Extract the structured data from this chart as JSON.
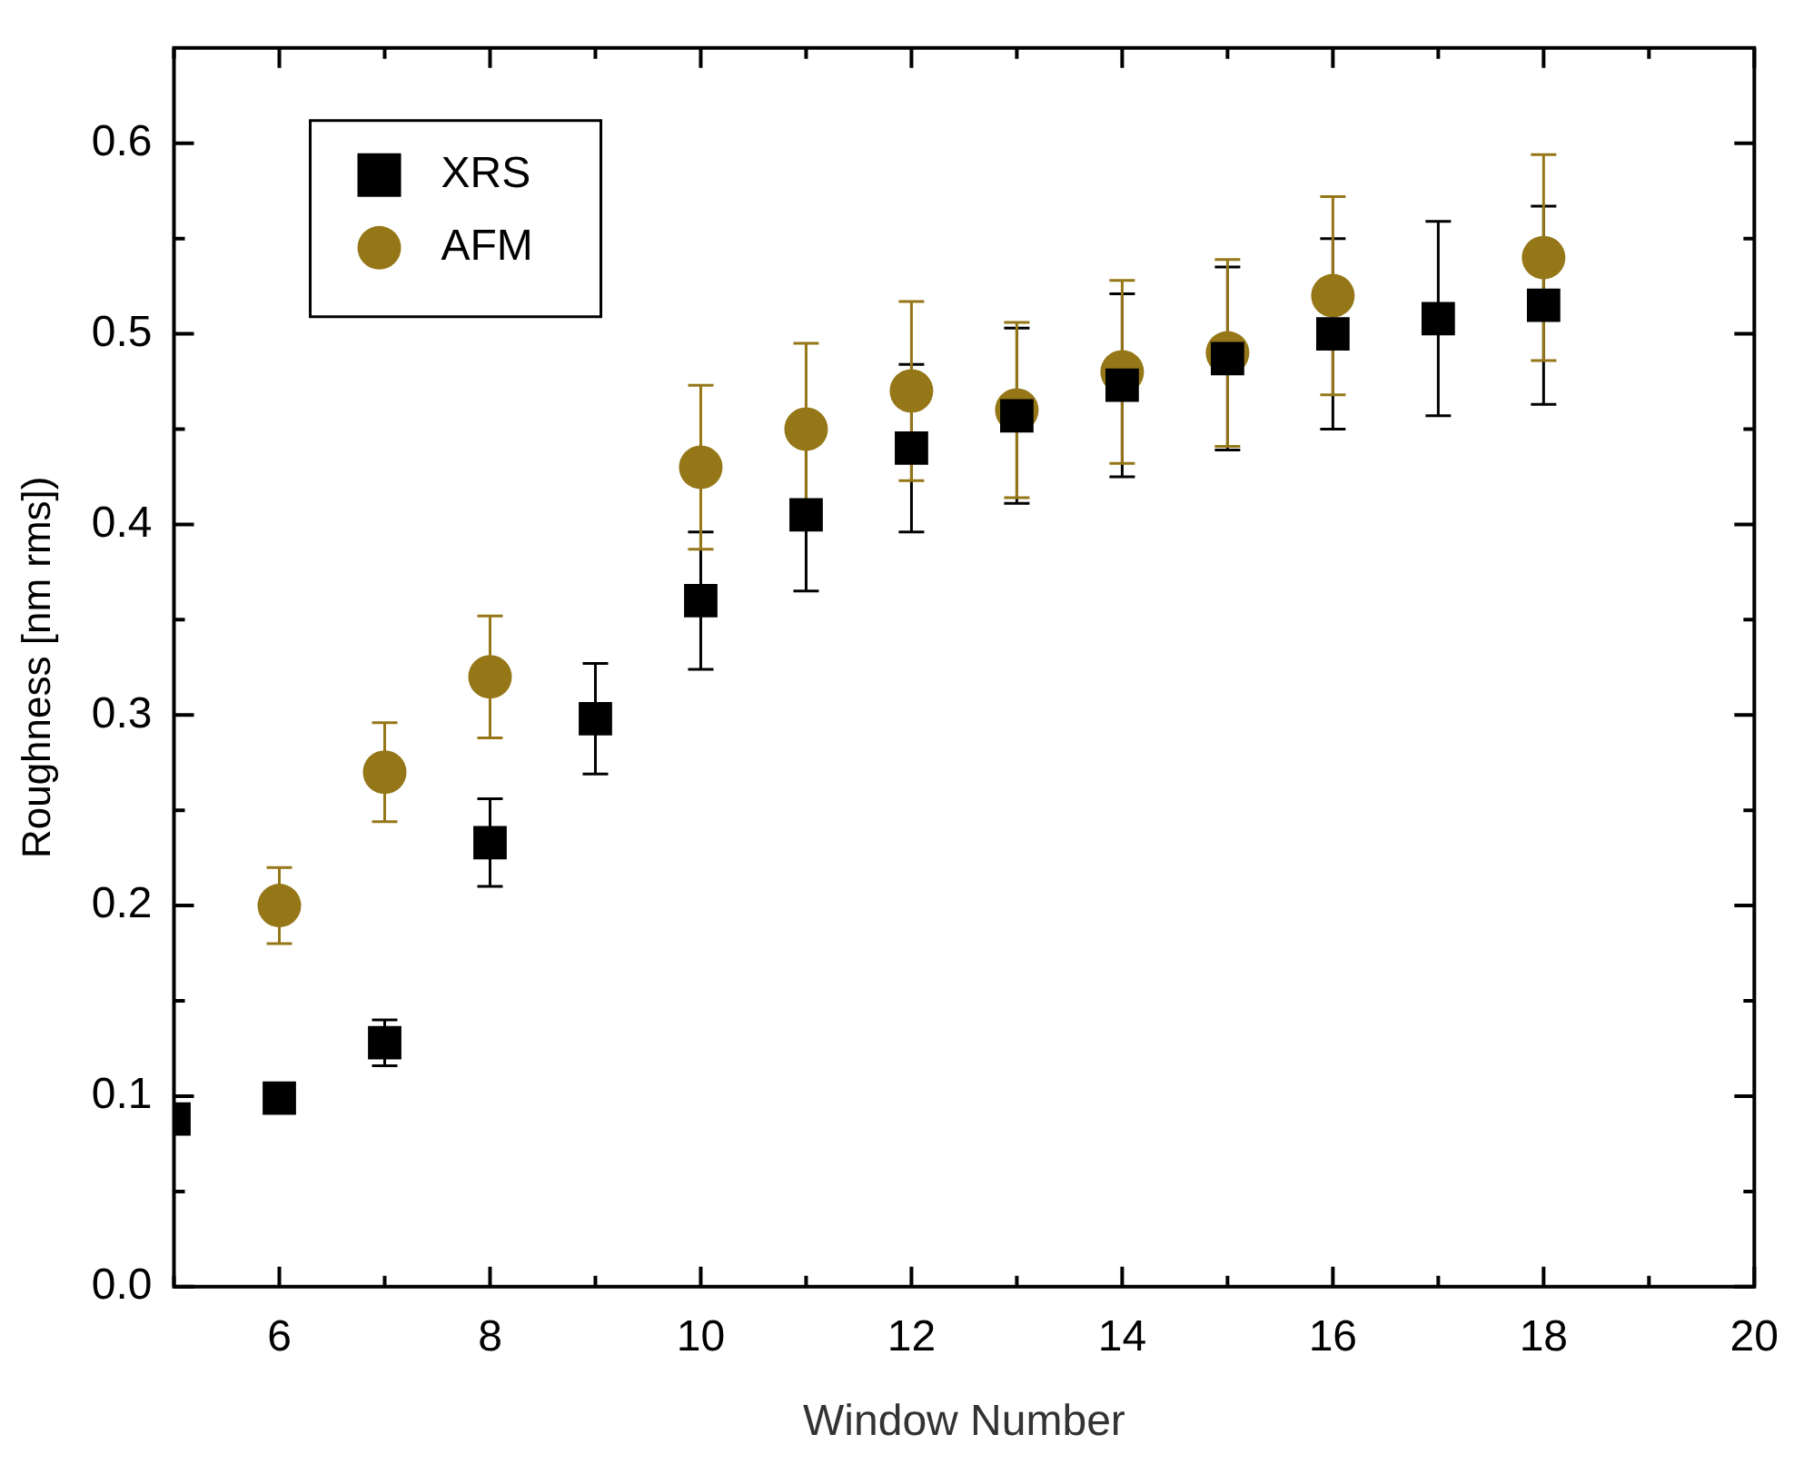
{
  "chart_data": {
    "type": "scatter",
    "xlabel": "Window Number",
    "ylabel": "Roughness [nm rms])",
    "xlim": [
      5,
      20
    ],
    "xticks": [
      {
        "value": 5,
        "label": null
      },
      6,
      {
        "value": 7,
        "label": null
      },
      8,
      {
        "value": 9,
        "label": null
      },
      10,
      {
        "value": 11,
        "label": null
      },
      12,
      {
        "value": 13,
        "label": null
      },
      14,
      {
        "value": 15,
        "label": null
      },
      16,
      {
        "value": 17,
        "label": null
      },
      18,
      {
        "value": 19,
        "label": null
      },
      20
    ],
    "ylim": [
      0,
      0.65
    ],
    "yticks": [
      {
        "value": 0,
        "label": "0.0"
      },
      {
        "value": 0.05,
        "label": null
      },
      0.1,
      {
        "value": 0.15,
        "label": null
      },
      0.2,
      {
        "value": 0.25,
        "label": null
      },
      0.3,
      {
        "value": 0.35,
        "label": null
      },
      0.4,
      {
        "value": 0.45,
        "label": null
      },
      0.5,
      {
        "value": 0.55,
        "label": null
      },
      0.6
    ],
    "grid": false,
    "legend": "top left",
    "series": [
      {
        "name": "XRS",
        "color": "#000000",
        "marker": "square",
        "x": [
          5,
          6,
          7,
          8,
          9,
          10,
          11,
          12,
          13,
          14,
          15,
          16,
          17,
          18
        ],
        "values": [
          0.088,
          0.099,
          0.128,
          0.233,
          0.298,
          0.36,
          0.405,
          0.44,
          0.457,
          0.473,
          0.487,
          0.5,
          0.508,
          0.515
        ],
        "errors": [
          null,
          null,
          0.012,
          0.023,
          0.029,
          0.036,
          0.04,
          0.044,
          0.046,
          0.048,
          0.048,
          0.05,
          0.051,
          0.052
        ]
      },
      {
        "name": "AFM",
        "color": "#957718",
        "marker": "circle",
        "x": [
          6,
          7,
          8,
          10,
          11,
          12,
          13,
          14,
          15,
          16,
          18
        ],
        "values": [
          0.2,
          0.27,
          0.32,
          0.43,
          0.45,
          0.47,
          0.46,
          0.48,
          0.49,
          0.52,
          0.54
        ],
        "errors": [
          0.02,
          0.026,
          0.032,
          0.043,
          0.045,
          0.047,
          0.046,
          0.048,
          0.049,
          0.052,
          0.054
        ]
      }
    ]
  }
}
